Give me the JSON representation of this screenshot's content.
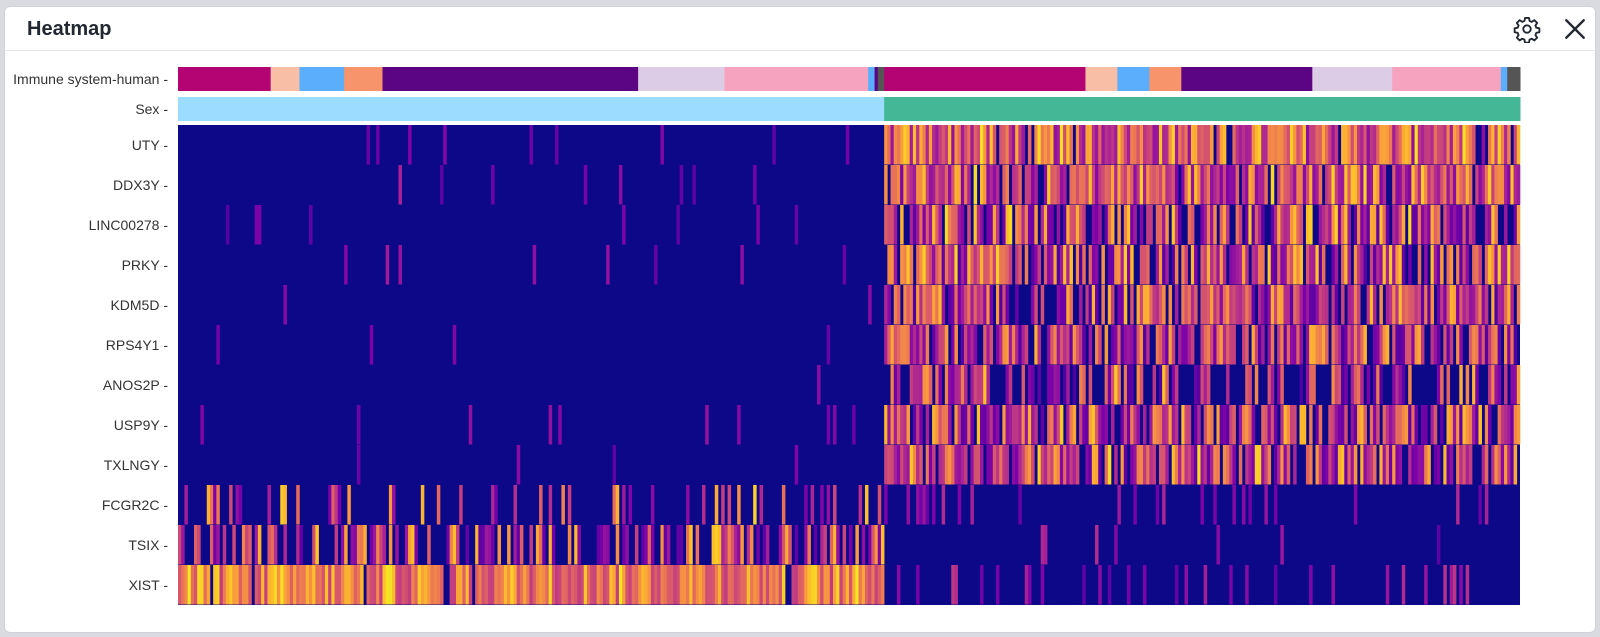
{
  "window": {
    "title": "Heatmap",
    "settings_icon": "gear-icon",
    "close_icon": "close-icon",
    "background": "#ffffff"
  },
  "chart_data": {
    "type": "heatmap",
    "colormap": "plasma",
    "value_range": [
      0,
      1
    ],
    "cell_count": 420,
    "annotation_tracks": [
      {
        "label": "Immune system-human",
        "segments": [
          {
            "from": 0,
            "to": 29,
            "color": "#b40473"
          },
          {
            "from": 29,
            "to": 38,
            "color": "#f9bfa6"
          },
          {
            "from": 38,
            "to": 52,
            "color": "#5aaefb"
          },
          {
            "from": 52,
            "to": 64,
            "color": "#f8946b"
          },
          {
            "from": 64,
            "to": 144,
            "color": "#5b0585"
          },
          {
            "from": 144,
            "to": 171,
            "color": "#dccce6"
          },
          {
            "from": 171,
            "to": 216,
            "color": "#f6a3c0"
          },
          {
            "from": 216,
            "to": 218,
            "color": "#5aaefb"
          },
          {
            "from": 218,
            "to": 219,
            "color": "#5b0585"
          },
          {
            "from": 219,
            "to": 221,
            "color": "#555555"
          },
          {
            "from": 221,
            "to": 284,
            "color": "#b40473"
          },
          {
            "from": 284,
            "to": 294,
            "color": "#f9bfa6"
          },
          {
            "from": 294,
            "to": 304,
            "color": "#5aaefb"
          },
          {
            "from": 304,
            "to": 314,
            "color": "#f8946b"
          },
          {
            "from": 314,
            "to": 355,
            "color": "#5b0585"
          },
          {
            "from": 355,
            "to": 380,
            "color": "#dccce6"
          },
          {
            "from": 380,
            "to": 414,
            "color": "#f6a3c0"
          },
          {
            "from": 414,
            "to": 416,
            "color": "#5aaefb"
          },
          {
            "from": 416,
            "to": 420,
            "color": "#555555"
          }
        ]
      },
      {
        "label": "Sex",
        "segments": [
          {
            "from": 0,
            "to": 221,
            "color": "#9bdcff"
          },
          {
            "from": 221,
            "to": 420,
            "color": "#44b896"
          }
        ]
      }
    ],
    "genes": [
      {
        "name": "UTY",
        "group1": {
          "p": 0.04,
          "lo": 0.18,
          "hi": 0.4
        },
        "group2": {
          "p": 0.95,
          "lo": 0.35,
          "hi": 0.97
        }
      },
      {
        "name": "DDX3Y",
        "group1": {
          "p": 0.03,
          "lo": 0.2,
          "hi": 0.45
        },
        "group2": {
          "p": 0.93,
          "lo": 0.3,
          "hi": 0.98
        }
      },
      {
        "name": "LINC00278",
        "group1": {
          "p": 0.03,
          "lo": 0.18,
          "hi": 0.35
        },
        "group2": {
          "p": 0.75,
          "lo": 0.2,
          "hi": 0.97
        }
      },
      {
        "name": "PRKY",
        "group1": {
          "p": 0.04,
          "lo": 0.2,
          "hi": 0.45
        },
        "group2": {
          "p": 0.8,
          "lo": 0.15,
          "hi": 0.95
        }
      },
      {
        "name": "KDM5D",
        "group1": {
          "p": 0.02,
          "lo": 0.2,
          "hi": 0.35
        },
        "group2": {
          "p": 0.8,
          "lo": 0.15,
          "hi": 0.92
        }
      },
      {
        "name": "RPS4Y1",
        "group1": {
          "p": 0.02,
          "lo": 0.2,
          "hi": 0.35
        },
        "group2": {
          "p": 0.82,
          "lo": 0.15,
          "hi": 0.9
        }
      },
      {
        "name": "ANOS2P",
        "group1": {
          "p": 0.01,
          "lo": 0.2,
          "hi": 0.35
        },
        "group2": {
          "p": 0.55,
          "lo": 0.15,
          "hi": 0.95
        }
      },
      {
        "name": "USP9Y",
        "group1": {
          "p": 0.03,
          "lo": 0.2,
          "hi": 0.45
        },
        "group2": {
          "p": 0.8,
          "lo": 0.2,
          "hi": 0.95
        }
      },
      {
        "name": "TXLNGY",
        "group1": {
          "p": 0.02,
          "lo": 0.2,
          "hi": 0.35
        },
        "group2": {
          "p": 0.82,
          "lo": 0.2,
          "hi": 0.97
        }
      },
      {
        "name": "FCGR2C",
        "group1": {
          "p": 0.22,
          "lo": 0.25,
          "hi": 0.95
        },
        "group2": {
          "p": 0.12,
          "lo": 0.2,
          "hi": 0.5
        }
      },
      {
        "name": "TSIX",
        "group1": {
          "p": 0.55,
          "lo": 0.2,
          "hi": 0.95
        },
        "group2": {
          "p": 0.05,
          "lo": 0.2,
          "hi": 0.5
        }
      },
      {
        "name": "XIST",
        "group1": {
          "p": 0.95,
          "lo": 0.55,
          "hi": 0.98
        },
        "group2": {
          "p": 0.15,
          "lo": 0.2,
          "hi": 0.55
        }
      }
    ],
    "group_boundary_cell": 221
  }
}
